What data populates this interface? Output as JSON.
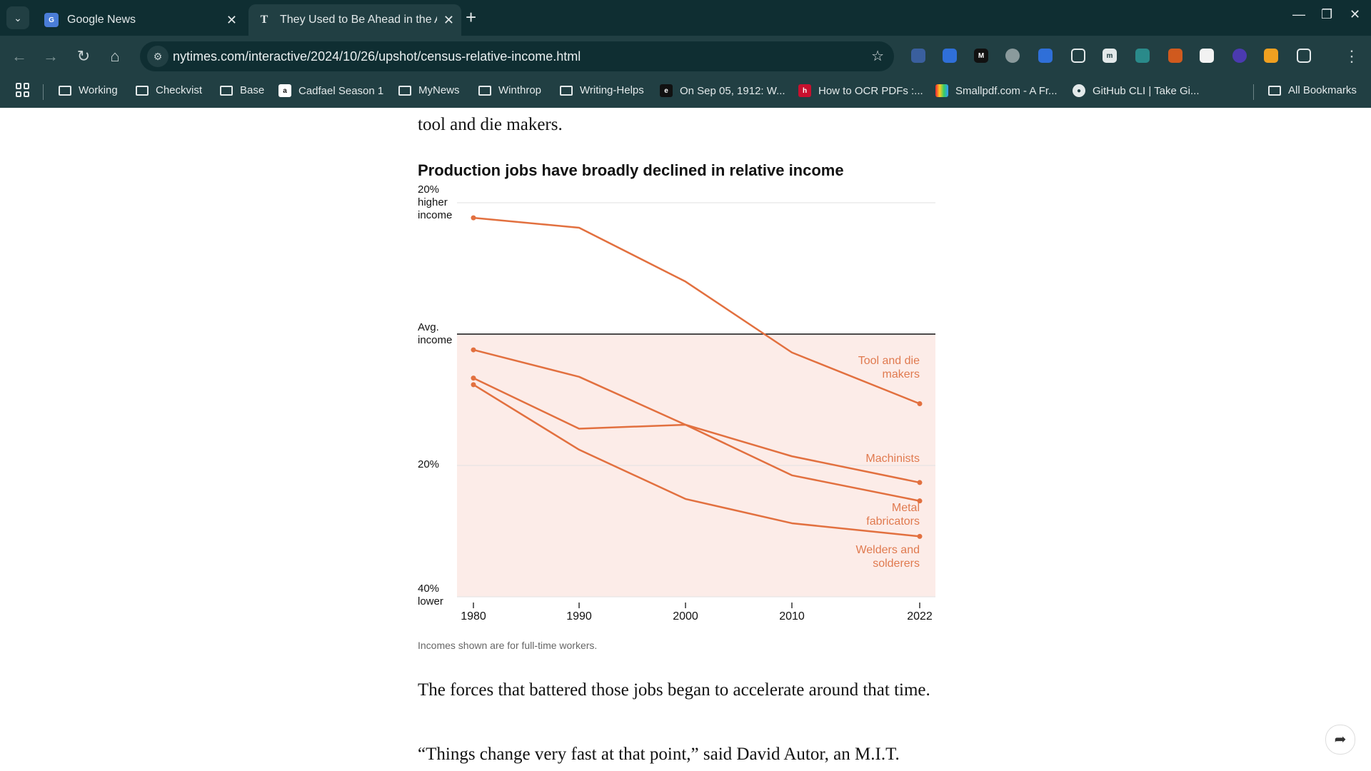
{
  "tabs": [
    {
      "title": "Google News",
      "icon": "google-news-icon"
    },
    {
      "title": "They Used to Be Ahead in the A",
      "icon": "nyt-icon",
      "active": true
    }
  ],
  "toolbar": {
    "url": "nytimes.com/interactive/2024/10/26/upshot/census-relative-income.html"
  },
  "bookmarks": [
    {
      "label": "Working",
      "icon": "folder-icon"
    },
    {
      "label": "Checkvist",
      "icon": "folder-icon"
    },
    {
      "label": "Base",
      "icon": "folder-icon"
    },
    {
      "label": "Cadfael Season 1",
      "icon": "amazon-icon"
    },
    {
      "label": "MyNews",
      "icon": "folder-icon"
    },
    {
      "label": "Winthrop",
      "icon": "folder-icon"
    },
    {
      "label": "Writing-Helps",
      "icon": "folder-icon"
    },
    {
      "label": "On Sep 05, 1912: W...",
      "icon": "site-icon"
    },
    {
      "label": "How to OCR PDFs :...",
      "icon": "site-icon"
    },
    {
      "label": "Smallpdf.com - A Fr...",
      "icon": "smallpdf-icon"
    },
    {
      "label": "GitHub CLI | Take Gi...",
      "icon": "github-icon"
    },
    {
      "label": "All Bookmarks",
      "icon": "folder-icon"
    }
  ],
  "article": {
    "intro_fragment": "tool and die makers.",
    "para1": "The forces that battered those jobs began to accelerate around that time.",
    "para2": "“Things change very fast at that point,” said David Autor, an M.I.T."
  },
  "chart_data": {
    "type": "line",
    "title": "Production jobs have broadly declined in relative income",
    "note": "Incomes shown are for full-time workers.",
    "x": [
      1980,
      1990,
      2000,
      2010,
      2022
    ],
    "y_ticks": [
      {
        "value": 20,
        "label": "20%\nhigher\nincome"
      },
      {
        "value": 0,
        "label": "Avg.\nincome"
      },
      {
        "value": -20,
        "label": "20%"
      },
      {
        "value": -40,
        "label": "40%\nlower"
      }
    ],
    "ylim": [
      -40,
      20
    ],
    "series": [
      {
        "name": "Tool and die makers",
        "values": [
          17.7,
          16.2,
          8.0,
          -2.8,
          -10.6
        ]
      },
      {
        "name": "Machinists",
        "values": [
          -2.4,
          -6.5,
          -13.8,
          -18.6,
          -22.6
        ]
      },
      {
        "name": "Metal fabricators",
        "values": [
          -6.7,
          -14.4,
          -13.8,
          -21.5,
          -25.4
        ]
      },
      {
        "name": "Welders and solderers",
        "values": [
          -7.7,
          -17.6,
          -25.1,
          -28.8,
          -30.8
        ]
      }
    ],
    "colors": {
      "line": "#e2703f",
      "below_avg_fill": "#fcece8",
      "avg_line": "#121212",
      "grid": "#e2e2e2"
    }
  }
}
